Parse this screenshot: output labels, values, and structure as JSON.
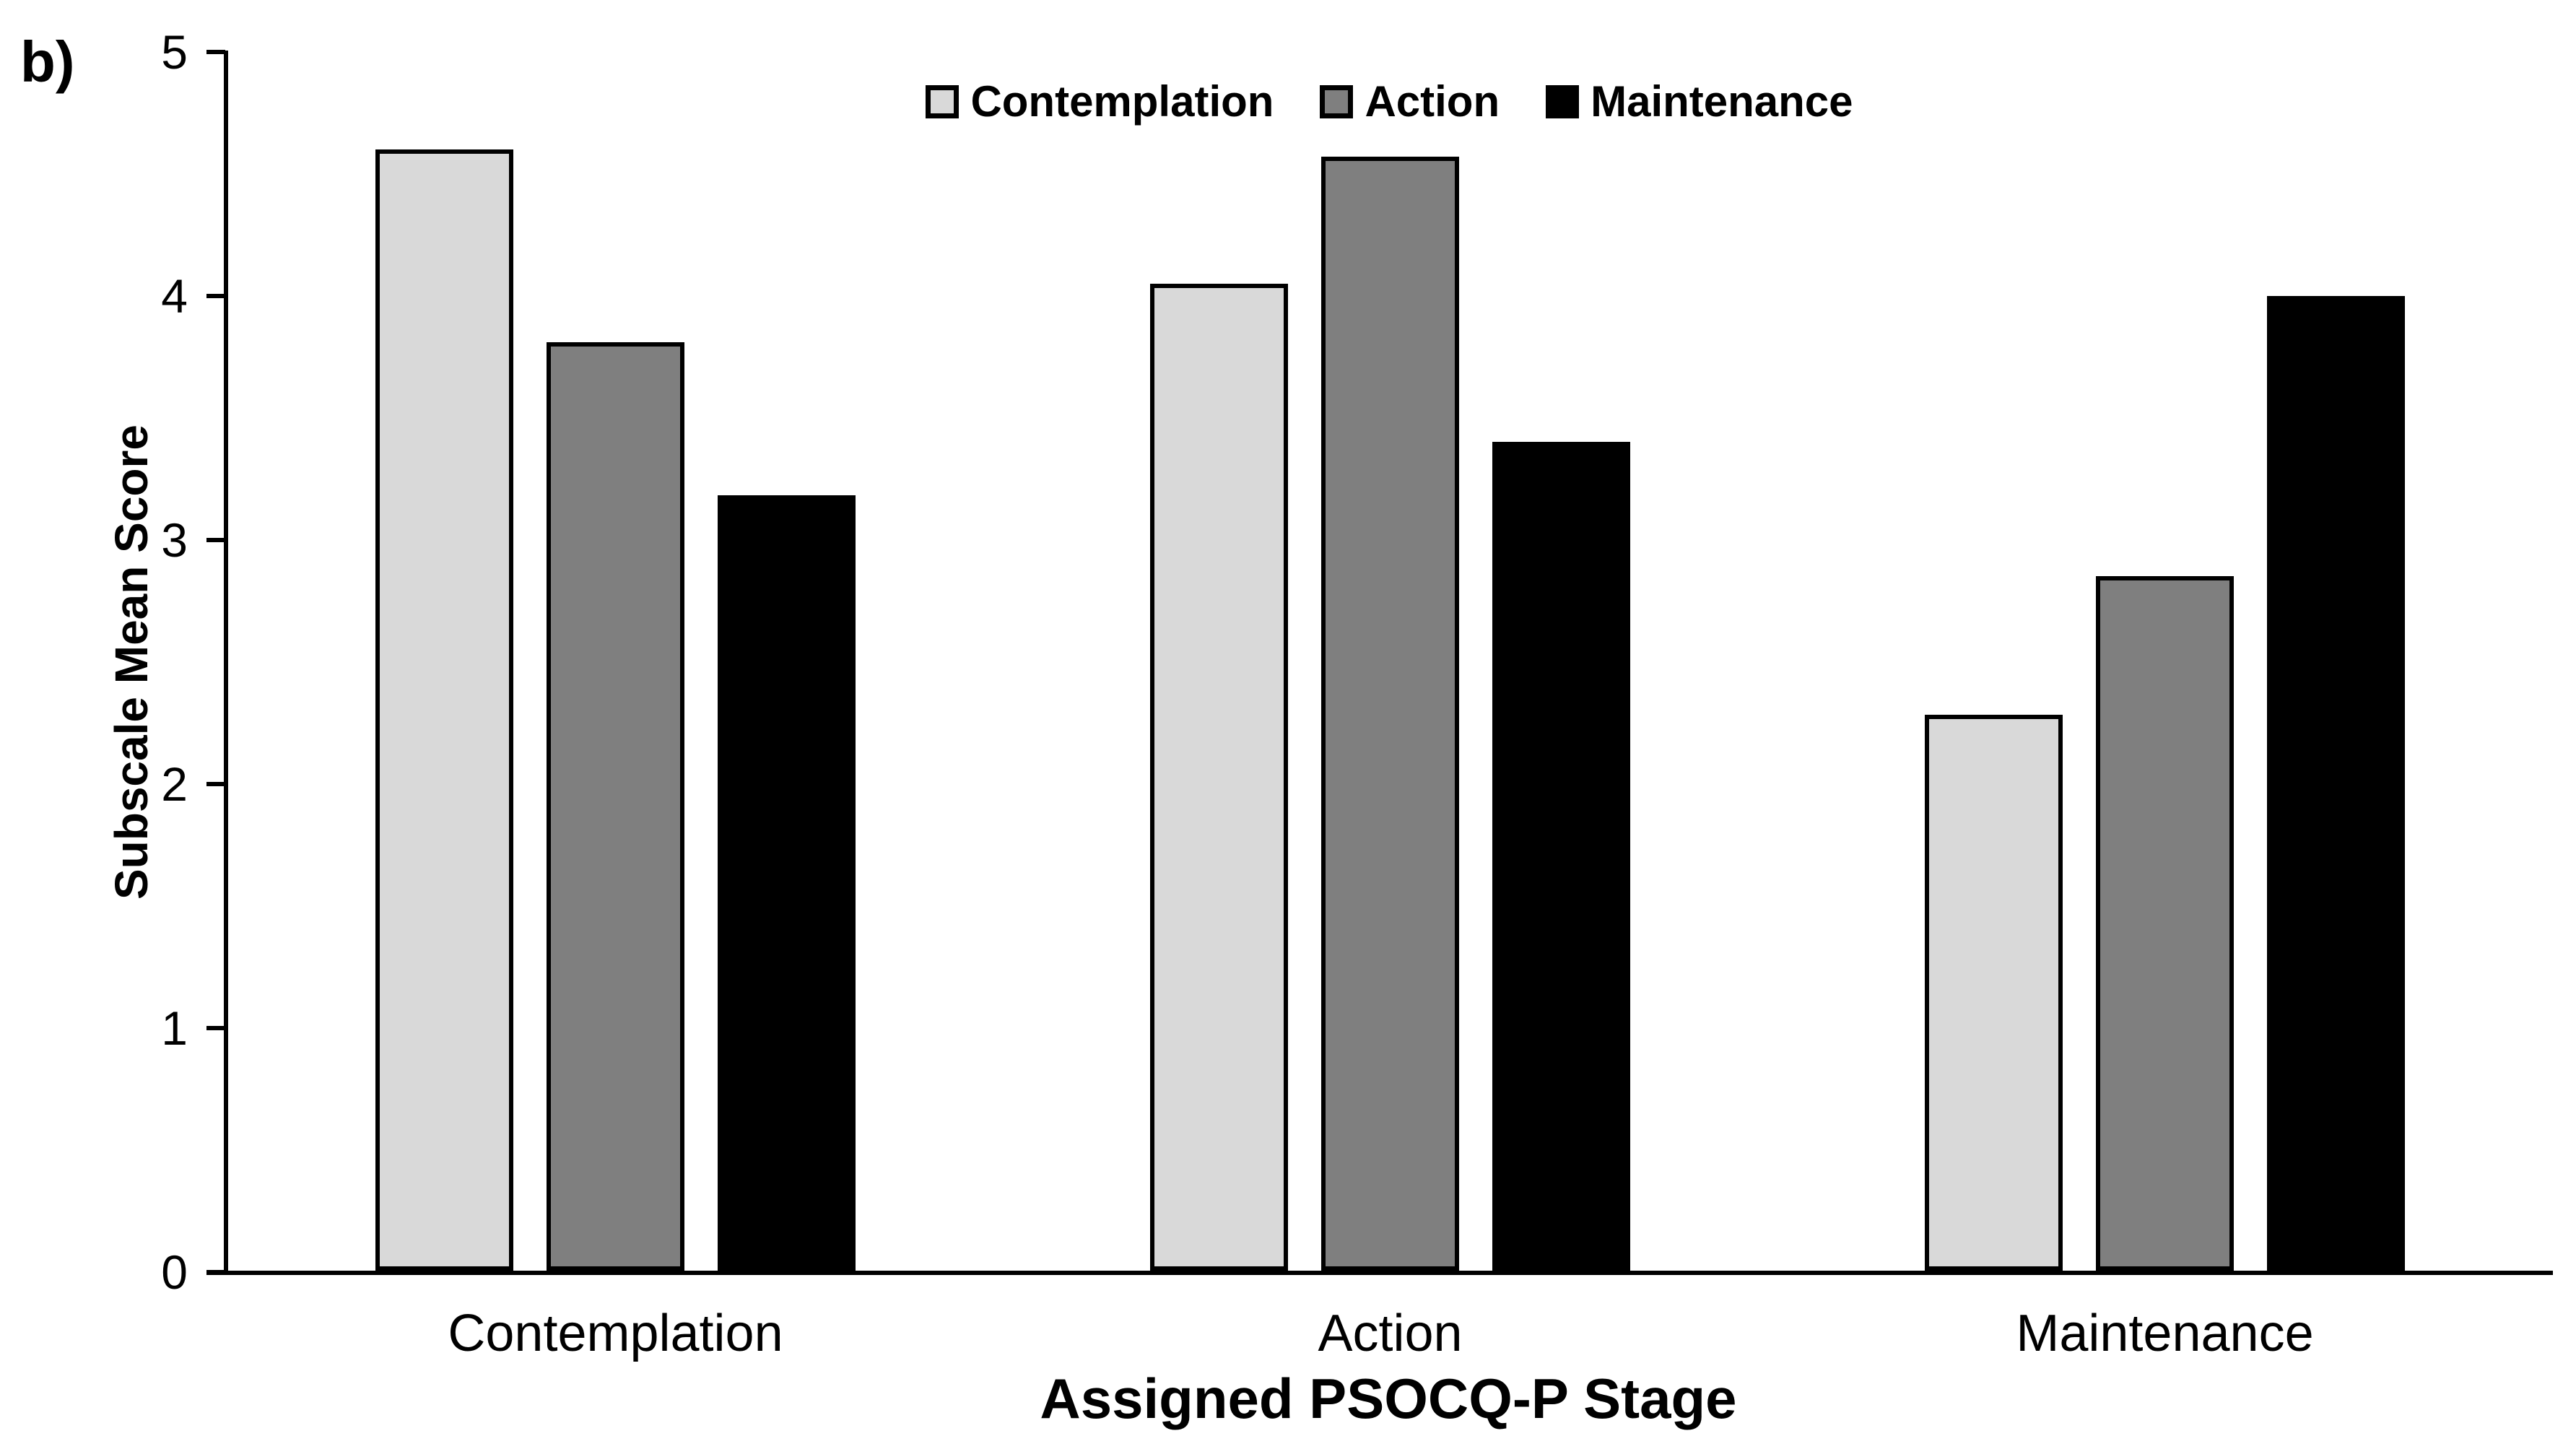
{
  "figure_label": "b)",
  "axes": {
    "y_axis_title": "Subscale Mean Score",
    "x_axis_title": "Assigned PSOCQ-P Stage"
  },
  "chart_data": {
    "type": "bar",
    "title": "",
    "categories": [
      "Contemplation",
      "Action",
      "Maintenance"
    ],
    "series": [
      {
        "name": "Contemplation",
        "color": "#d9d9d9",
        "values": [
          4.6,
          4.05,
          2.28
        ]
      },
      {
        "name": "Action",
        "color": "#7f7f7f",
        "values": [
          3.81,
          4.57,
          2.85
        ]
      },
      {
        "name": "Maintenance",
        "color": "#000000",
        "values": [
          3.18,
          3.4,
          4.0
        ]
      }
    ],
    "xlabel": "Assigned PSOCQ-P Stage",
    "ylabel": "Subscale Mean Score",
    "ylim": [
      0,
      5
    ],
    "yticks": [
      0,
      1,
      2,
      3,
      4,
      5
    ],
    "grid": false,
    "legend_position": "top-center",
    "bar_outline_color": "#000000",
    "background_color": "#ffffff"
  }
}
